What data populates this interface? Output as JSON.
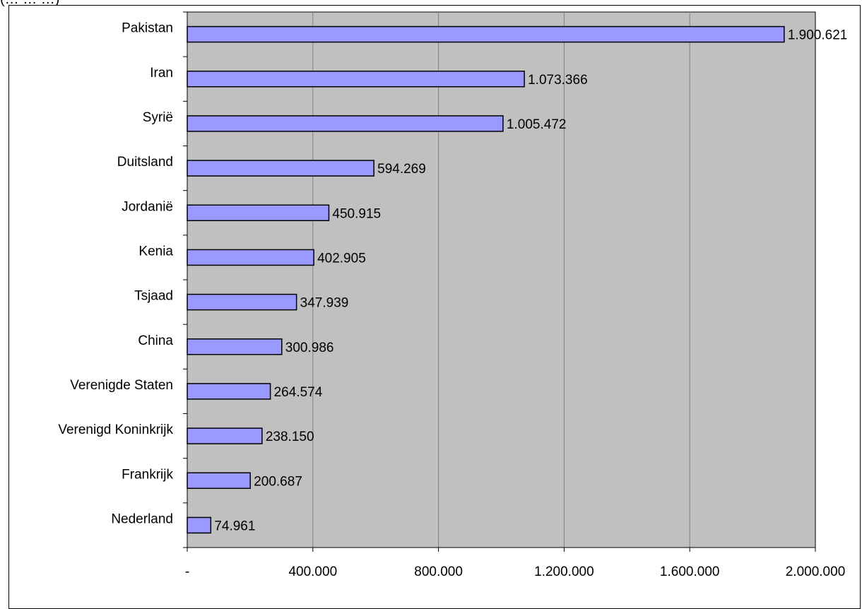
{
  "chart_data": {
    "type": "bar",
    "orientation": "horizontal",
    "title": "(… … …)",
    "categories": [
      "Pakistan",
      "Iran",
      "Syrië",
      "Duitsland",
      "Jordanië",
      "Kenia",
      "Tsjaad",
      "China",
      "Verenigde Staten",
      "Verenigd Koninkrijk",
      "Frankrijk",
      "Nederland"
    ],
    "values": [
      1900621,
      1073366,
      1005472,
      594269,
      450915,
      402905,
      347939,
      300986,
      264574,
      238150,
      200687,
      74961
    ],
    "value_labels": [
      "1.900.621",
      "1.073.366",
      "1.005.472",
      "594.269",
      "450.915",
      "402.905",
      "347.939",
      "300.986",
      "264.574",
      "238.150",
      "200.687",
      "74.961"
    ],
    "xlim": [
      0,
      2000000
    ],
    "x_ticks": [
      0,
      400000,
      800000,
      1200000,
      1600000,
      2000000
    ],
    "x_tick_labels": [
      "-",
      "400.000",
      "800.000",
      "1.200.000",
      "1.600.000",
      "2.000.000"
    ],
    "xlabel": "",
    "ylabel": "",
    "grid": "vertical",
    "legend": "none",
    "colors": {
      "bar_fill": "#9999ff",
      "bar_stroke": "#000000",
      "plot_background": "#c0c0c0",
      "gridline": "#808080"
    }
  }
}
